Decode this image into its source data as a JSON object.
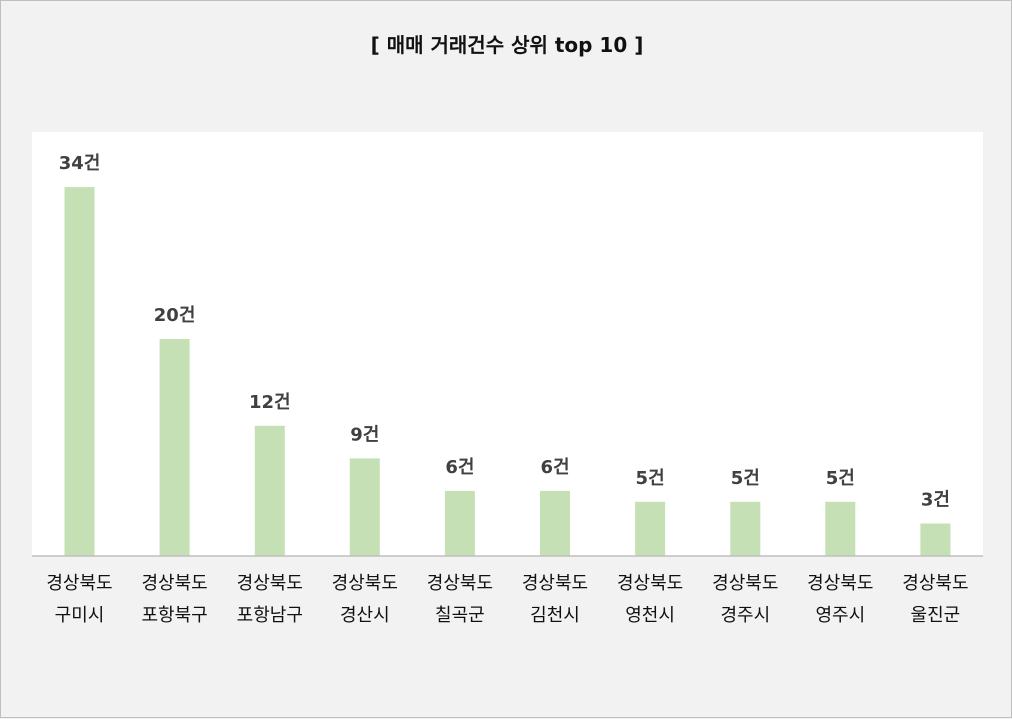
{
  "chart_data": {
    "type": "bar",
    "title": "[ 매매 거래건수 상위 top 10 ]",
    "xlabel": "",
    "ylabel": "",
    "ylim": [
      0,
      36
    ],
    "grid": false,
    "legend": "none",
    "bar_color": "#c5e0b4",
    "unit_suffix": "건",
    "categories": [
      [
        "경상북도",
        "구미시"
      ],
      [
        "경상북도",
        "포항북구"
      ],
      [
        "경상북도",
        "포항남구"
      ],
      [
        "경상북도",
        "경산시"
      ],
      [
        "경상북도",
        "칠곡군"
      ],
      [
        "경상북도",
        "김천시"
      ],
      [
        "경상북도",
        "영천시"
      ],
      [
        "경상북도",
        "경주시"
      ],
      [
        "경상북도",
        "영주시"
      ],
      [
        "경상북도",
        "울진군"
      ]
    ],
    "values": [
      34,
      20,
      12,
      9,
      6,
      6,
      5,
      5,
      5,
      3
    ],
    "data_labels": [
      "34건",
      "20건",
      "12건",
      "9건",
      "6건",
      "6건",
      "5건",
      "5건",
      "5건",
      "3건"
    ]
  }
}
